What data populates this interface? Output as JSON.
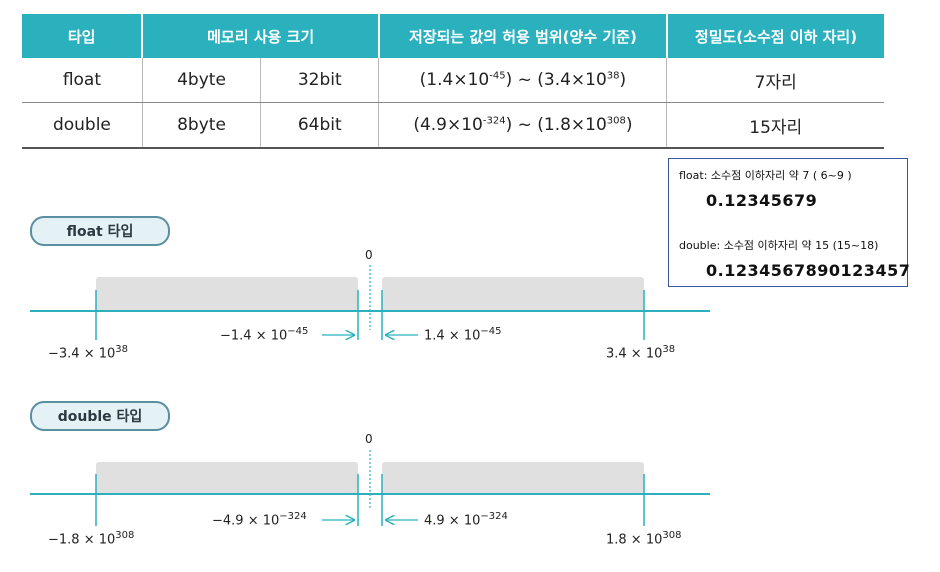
{
  "table": {
    "headers": [
      "타입",
      "메모리 사용 크기",
      "저장되는 값의 허용 범위(양수 기준)",
      "정밀도(소수점 이하 자리)"
    ],
    "rows": [
      {
        "type": "float",
        "bytes": "4byte",
        "bits": "32bit",
        "range_a": "(1.4×10",
        "range_a_exp": "-45",
        "range_mid": ") ~ (3.4×10",
        "range_b_exp": "38",
        "range_end": ")",
        "precision": "7자리"
      },
      {
        "type": "double",
        "bytes": "8byte",
        "bits": "64bit",
        "range_a": "(4.9×10",
        "range_a_exp": "-324",
        "range_mid": ") ~ (1.8×10",
        "range_b_exp": "308",
        "range_end": ")",
        "precision": "15자리"
      }
    ]
  },
  "infobox": {
    "float_label": "float: 소수점 이하자리 약 7 ( 6~9 )",
    "float_value": "0.12345679",
    "double_label": "double: 소수점 이하자리 약 15  (15~18)",
    "double_value": "0.1234567890123457"
  },
  "float_diagram": {
    "title": "float 타입",
    "zero": "0",
    "neg_max": "−3.4 × 10",
    "neg_max_exp": "38",
    "neg_min": "−1.4 × 10",
    "neg_min_exp": "−45",
    "pos_min": "1.4 × 10",
    "pos_min_exp": "−45",
    "pos_max": "3.4 × 10",
    "pos_max_exp": "38"
  },
  "double_diagram": {
    "title": "double 타입",
    "zero": "0",
    "neg_max": "−1.8 × 10",
    "neg_max_exp": "308",
    "neg_min": "−4.9 × 10",
    "neg_min_exp": "−324",
    "pos_min": "4.9 × 10",
    "pos_min_exp": "−324",
    "pos_max": "1.8 × 10",
    "pos_max_exp": "308"
  },
  "colors": {
    "header_bg": "#2bb1be",
    "axis": "#2bb1be",
    "range_fill": "#e0e0e0",
    "box_border": "#3a55a0"
  }
}
